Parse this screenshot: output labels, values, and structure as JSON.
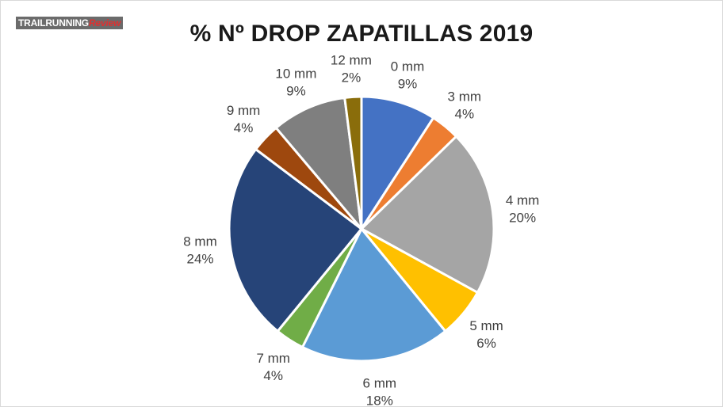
{
  "watermark": {
    "part1": "TRAILRUNNING",
    "part2": "Review"
  },
  "chart_data": {
    "type": "pie",
    "title": "% Nº DROP ZAPATILLAS 2019",
    "slices": [
      {
        "label": "0 mm",
        "pct_label": "9%",
        "value": 9,
        "color": "#4472c4"
      },
      {
        "label": "3 mm",
        "pct_label": "4%",
        "value": 3.5,
        "color": "#ed7d31"
      },
      {
        "label": "4 mm",
        "pct_label": "20%",
        "value": 20,
        "color": "#a5a5a5"
      },
      {
        "label": "5 mm",
        "pct_label": "6%",
        "value": 6,
        "color": "#ffc000"
      },
      {
        "label": "6 mm",
        "pct_label": "18%",
        "value": 18,
        "color": "#5b9bd5"
      },
      {
        "label": "7 mm",
        "pct_label": "4%",
        "value": 3.5,
        "color": "#70ad47"
      },
      {
        "label": "8 mm",
        "pct_label": "24%",
        "value": 24,
        "color": "#264478"
      },
      {
        "label": "9 mm",
        "pct_label": "4%",
        "value": 3.5,
        "color": "#9e480e"
      },
      {
        "label": "10 mm",
        "pct_label": "9%",
        "value": 9,
        "color": "#7f7f7f"
      },
      {
        "label": "12 mm",
        "pct_label": "2%",
        "value": 2,
        "color": "#8a6d0b"
      }
    ],
    "legend": "none"
  }
}
